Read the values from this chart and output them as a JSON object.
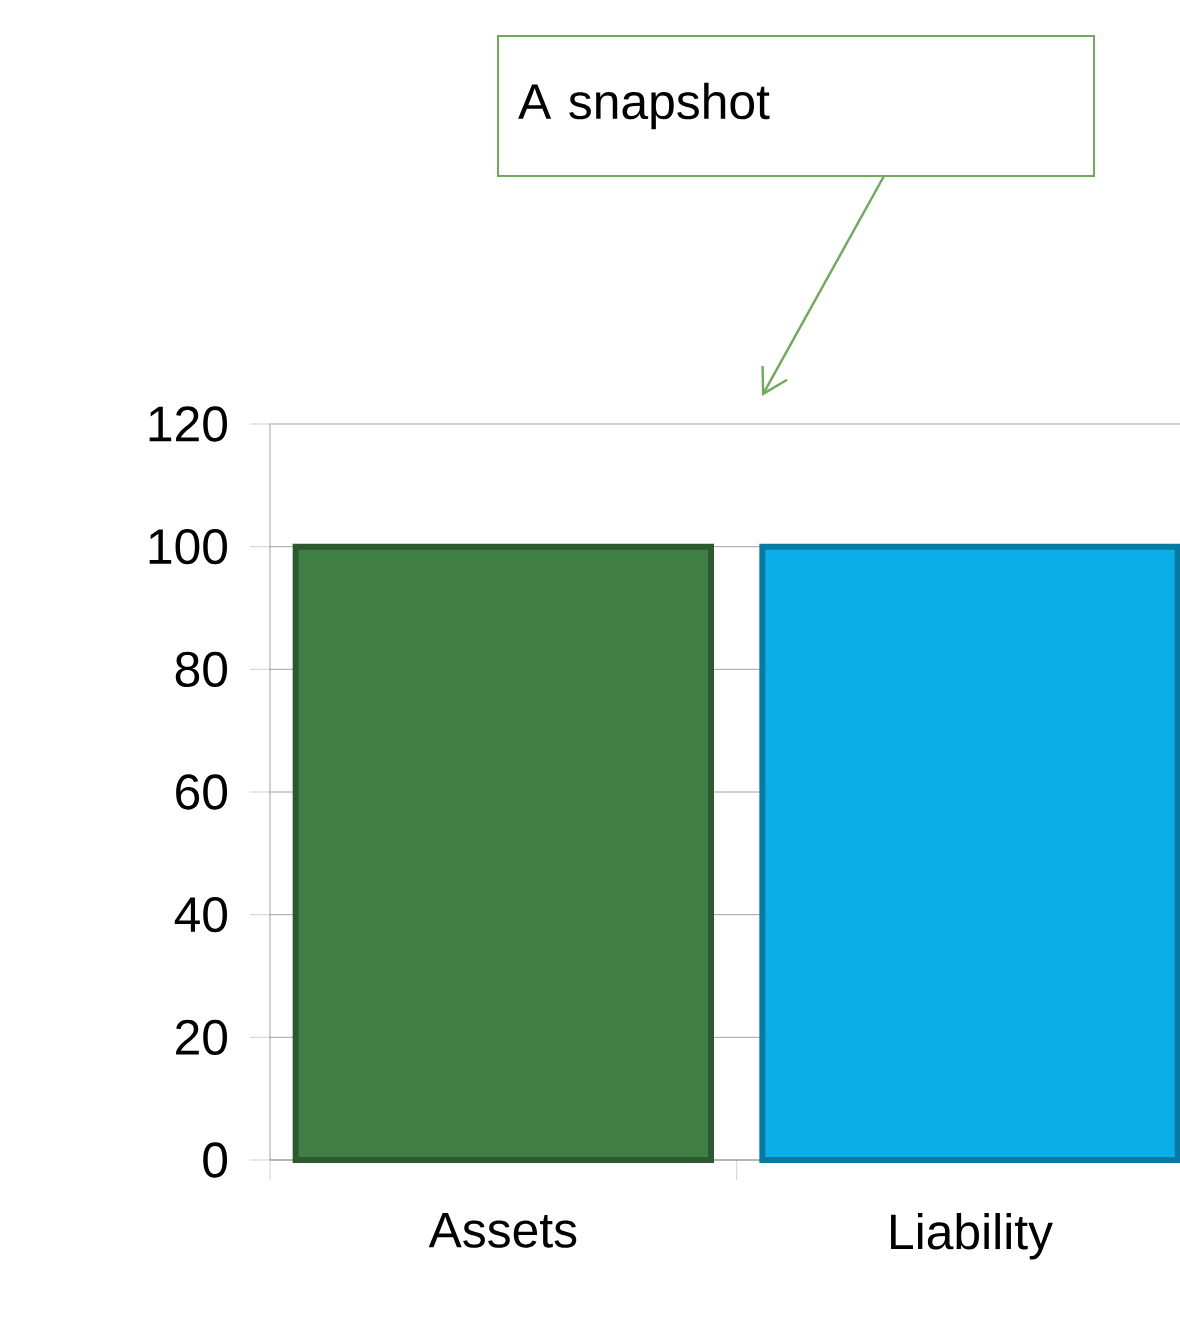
{
  "chart_data": {
    "type": "bar",
    "categories": [
      "Assets",
      "Liability"
    ],
    "values": [
      100,
      100
    ],
    "colors": [
      "#3f7f45",
      "#0aaee8"
    ],
    "ylim": [
      0,
      120
    ],
    "yticks": [
      0,
      20,
      40,
      60,
      80,
      100,
      120
    ],
    "grid": "y",
    "annotations": [
      "A snapshot"
    ]
  }
}
